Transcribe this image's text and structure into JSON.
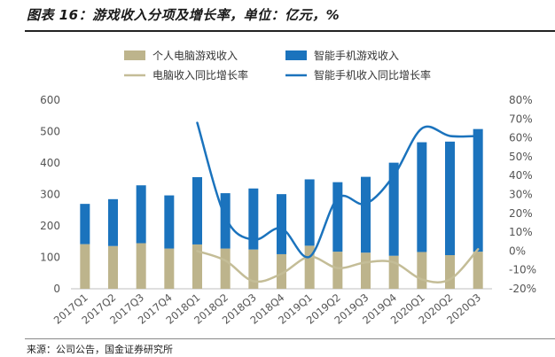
{
  "title": "图表 16：游戏收入分项及增长率，单位：亿元，%",
  "source": "来源：公司公告，国金证券研究所",
  "chart_data": {
    "type": "bar+line",
    "categories": [
      "2017Q1",
      "2017Q2",
      "2017Q3",
      "2017Q4",
      "2018Q1",
      "2018Q2",
      "2018Q3",
      "2018Q4",
      "2019Q1",
      "2019Q2",
      "2019Q3",
      "2019Q4",
      "2020Q1",
      "2020Q2",
      "2020Q3"
    ],
    "series": [
      {
        "name": "个人电脑游戏收入",
        "kind": "stacked-bar",
        "axis": "left",
        "color": "#bdb48c",
        "values": [
          142,
          136,
          145,
          128,
          141,
          128,
          125,
          110,
          137,
          118,
          115,
          105,
          117,
          107,
          118
        ]
      },
      {
        "name": "智能手机游戏收入",
        "kind": "stacked-bar",
        "axis": "left",
        "color": "#1b73bd",
        "values": [
          128,
          149,
          184,
          169,
          214,
          176,
          194,
          191,
          211,
          221,
          241,
          296,
          349,
          361,
          390
        ]
      },
      {
        "name": "电脑收入同比增长率",
        "kind": "line",
        "axis": "right",
        "color": "#c4bd97",
        "values": [
          null,
          null,
          null,
          null,
          0,
          -5,
          -16,
          -12,
          -3,
          -9,
          -6,
          -6,
          -15,
          -15,
          1
        ]
      },
      {
        "name": "智能手机收入同比增长率",
        "kind": "line",
        "axis": "right",
        "color": "#1b73bd",
        "values": [
          null,
          null,
          null,
          null,
          68,
          18,
          6,
          12,
          -3,
          28,
          25,
          40,
          65,
          61,
          61
        ]
      }
    ],
    "y_left": {
      "min": 0,
      "max": 600,
      "ticks": [
        0,
        100,
        200,
        300,
        400,
        500,
        600
      ]
    },
    "y_right": {
      "min": -20,
      "max": 80,
      "ticks": [
        -20,
        -10,
        0,
        10,
        20,
        30,
        40,
        50,
        60,
        70,
        80
      ],
      "tick_labels": [
        "-20%",
        "-10%",
        "0%",
        "10%",
        "20%",
        "30%",
        "40%",
        "50%",
        "60%",
        "70%",
        "80%"
      ]
    },
    "legend_position": "top"
  }
}
